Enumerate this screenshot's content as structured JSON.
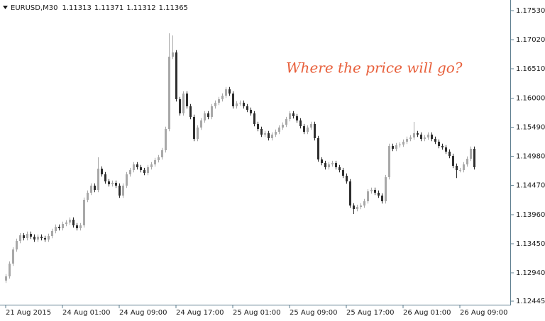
{
  "chart_data": {
    "type": "candlestick",
    "symbol": "EURUSD,M30",
    "header_values": [
      1.11313,
      1.11371,
      1.11312,
      1.11365
    ],
    "annotation": "Where the price will go?",
    "up_color": "#a8a8a8",
    "down_color": "#2e2e2e",
    "categories": [
      "21 Aug 2015",
      null,
      null,
      null,
      null,
      null,
      null,
      null,
      null,
      null,
      null,
      null,
      null,
      null,
      null,
      null,
      "24 Aug 01:00",
      null,
      null,
      null,
      null,
      null,
      null,
      null,
      null,
      null,
      null,
      null,
      null,
      null,
      null,
      null,
      "24 Aug 09:00",
      null,
      null,
      null,
      null,
      null,
      null,
      null,
      null,
      null,
      null,
      null,
      null,
      null,
      null,
      null,
      "24 Aug 17:00",
      null,
      null,
      null,
      null,
      null,
      null,
      null,
      null,
      null,
      null,
      null,
      null,
      null,
      null,
      null,
      "25 Aug 01:00",
      null,
      null,
      null,
      null,
      null,
      null,
      null,
      null,
      null,
      null,
      null,
      null,
      null,
      null,
      null,
      "25 Aug 09:00",
      null,
      null,
      null,
      null,
      null,
      null,
      null,
      null,
      null,
      null,
      null,
      null,
      null,
      null,
      null,
      "25 Aug 17:00",
      null,
      null,
      null,
      null,
      null,
      null,
      null,
      null,
      null,
      null,
      null,
      null,
      null,
      null,
      null,
      "26 Aug 01:00",
      null,
      null,
      null,
      null,
      null,
      null,
      null,
      null,
      null,
      null,
      null,
      null,
      null,
      null,
      null,
      "26 Aug 09:00",
      null,
      null,
      null,
      null
    ],
    "open": [
      1.12805,
      1.12879,
      1.13102,
      1.1335,
      1.13499,
      1.13598,
      1.13549,
      1.13623,
      1.13574,
      1.13524,
      1.13574,
      1.13549,
      1.13524,
      1.13586,
      1.13673,
      1.13747,
      1.13722,
      1.13797,
      1.13822,
      1.13871,
      1.13772,
      1.13722,
      1.13772,
      1.14219,
      1.14343,
      1.14467,
      1.14392,
      1.14764,
      1.14665,
      1.14541,
      1.14491,
      1.14516,
      1.14467,
      1.14293,
      1.14467,
      1.14665,
      1.14739,
      1.14839,
      1.14789,
      1.14739,
      1.1469,
      1.14789,
      1.14839,
      1.14913,
      1.14963,
      1.15087,
      1.15459,
      1.16724,
      1.16798,
      1.1598,
      1.15732,
      1.16079,
      1.15856,
      1.1567,
      1.15285,
      1.15484,
      1.15608,
      1.15732,
      1.1567,
      1.15856,
      1.15918,
      1.1598,
      1.16042,
      1.16153,
      1.16079,
      1.15856,
      1.15905,
      1.15918,
      1.15856,
      1.15794,
      1.15732,
      1.15546,
      1.15459,
      1.1536,
      1.15384,
      1.15298,
      1.1536,
      1.15409,
      1.15484,
      1.15533,
      1.15632,
      1.15732,
      1.15682,
      1.15608,
      1.15508,
      1.15409,
      1.15484,
      1.15546,
      1.15298,
      1.14925,
      1.14863,
      1.14789,
      1.14839,
      1.14863,
      1.14789,
      1.14739,
      1.1464,
      1.14541,
      1.14119,
      1.14057,
      1.14094,
      1.14119,
      1.14194,
      1.14367,
      1.14392,
      1.14343,
      1.14293,
      1.14194,
      1.14615,
      1.15161,
      1.15112,
      1.15174,
      1.15186,
      1.15236,
      1.15285,
      1.1531,
      1.15384,
      1.1536,
      1.15285,
      1.1531,
      1.1536,
      1.15285,
      1.15236,
      1.15161,
      1.15136,
      1.15062,
      1.14987,
      1.14814,
      1.14739,
      1.14739,
      1.14839,
      1.14938,
      1.15112
    ],
    "high": [
      1.12919,
      1.13142,
      1.1339,
      1.13539,
      1.13638,
      1.13638,
      1.13663,
      1.13663,
      1.13614,
      1.13614,
      1.13614,
      1.13589,
      1.13626,
      1.13713,
      1.13787,
      1.13787,
      1.13837,
      1.13862,
      1.13911,
      1.13911,
      1.13812,
      1.13812,
      1.14259,
      1.14383,
      1.14507,
      1.14507,
      1.14963,
      1.14804,
      1.14705,
      1.14581,
      1.14556,
      1.14556,
      1.14507,
      1.14507,
      1.14705,
      1.14779,
      1.14879,
      1.14879,
      1.14829,
      1.14779,
      1.14829,
      1.14879,
      1.14953,
      1.15003,
      1.15127,
      1.15499,
      1.17133,
      1.17096,
      1.16838,
      1.1602,
      1.16119,
      1.16119,
      1.15896,
      1.1571,
      1.15524,
      1.15648,
      1.15772,
      1.15772,
      1.15896,
      1.15958,
      1.1602,
      1.16082,
      1.16193,
      1.16193,
      1.16119,
      1.15945,
      1.15958,
      1.15958,
      1.15896,
      1.15834,
      1.15772,
      1.15586,
      1.15499,
      1.15424,
      1.15424,
      1.154,
      1.15449,
      1.15524,
      1.15573,
      1.15672,
      1.15772,
      1.15772,
      1.15722,
      1.15648,
      1.15548,
      1.15524,
      1.15586,
      1.15586,
      1.15338,
      1.14965,
      1.14903,
      1.14879,
      1.14903,
      1.14903,
      1.14829,
      1.14779,
      1.1468,
      1.14581,
      1.14159,
      1.14134,
      1.14159,
      1.14234,
      1.14407,
      1.14432,
      1.14432,
      1.14383,
      1.14333,
      1.14655,
      1.15201,
      1.15201,
      1.15214,
      1.15226,
      1.15276,
      1.15325,
      1.1535,
      1.15583,
      1.15424,
      1.154,
      1.1535,
      1.154,
      1.154,
      1.15325,
      1.15276,
      1.15201,
      1.15176,
      1.15102,
      1.15027,
      1.14854,
      1.14779,
      1.14879,
      1.14978,
      1.15152,
      1.15152
    ],
    "low": [
      1.12765,
      1.12839,
      1.13062,
      1.1331,
      1.13459,
      1.13509,
      1.13509,
      1.13534,
      1.13484,
      1.13484,
      1.13509,
      1.13484,
      1.13484,
      1.13546,
      1.13633,
      1.13682,
      1.13682,
      1.13757,
      1.13782,
      1.13732,
      1.13682,
      1.13682,
      1.13732,
      1.14179,
      1.14303,
      1.14352,
      1.14352,
      1.14625,
      1.14501,
      1.14451,
      1.14451,
      1.14427,
      1.14253,
      1.14253,
      1.14427,
      1.14625,
      1.14699,
      1.14749,
      1.14699,
      1.1465,
      1.1465,
      1.14749,
      1.14799,
      1.14873,
      1.14923,
      1.15047,
      1.15419,
      1.16684,
      1.1594,
      1.15692,
      1.15692,
      1.15816,
      1.1563,
      1.15245,
      1.15245,
      1.15444,
      1.15568,
      1.1563,
      1.1563,
      1.15816,
      1.15878,
      1.1594,
      1.16002,
      1.16039,
      1.15816,
      1.15816,
      1.15865,
      1.15816,
      1.15754,
      1.15692,
      1.15506,
      1.15419,
      1.1532,
      1.1532,
      1.15258,
      1.15258,
      1.1532,
      1.15369,
      1.15444,
      1.15493,
      1.15592,
      1.15642,
      1.15568,
      1.15468,
      1.15369,
      1.15369,
      1.15444,
      1.15258,
      1.14885,
      1.14823,
      1.14749,
      1.14749,
      1.14799,
      1.14749,
      1.14699,
      1.146,
      1.14501,
      1.14079,
      1.1397,
      1.14017,
      1.14054,
      1.14079,
      1.14154,
      1.14327,
      1.14303,
      1.14253,
      1.14154,
      1.14154,
      1.14575,
      1.15072,
      1.15072,
      1.15134,
      1.15146,
      1.15196,
      1.15245,
      1.1527,
      1.1532,
      1.15245,
      1.15245,
      1.1527,
      1.15245,
      1.15196,
      1.15121,
      1.15096,
      1.15022,
      1.14947,
      1.14774,
      1.146,
      1.14699,
      1.14699,
      1.14799,
      1.14898,
      1.14749
    ],
    "close": [
      1.12879,
      1.13102,
      1.1335,
      1.13499,
      1.13598,
      1.13549,
      1.13623,
      1.13574,
      1.13524,
      1.13574,
      1.13549,
      1.13524,
      1.13586,
      1.13673,
      1.13747,
      1.13722,
      1.13797,
      1.13822,
      1.13871,
      1.13772,
      1.13722,
      1.13772,
      1.14219,
      1.14343,
      1.14467,
      1.14392,
      1.14764,
      1.14665,
      1.14541,
      1.14491,
      1.14516,
      1.14467,
      1.14293,
      1.14467,
      1.14665,
      1.14739,
      1.14839,
      1.14789,
      1.14739,
      1.1469,
      1.14789,
      1.14839,
      1.14913,
      1.14963,
      1.15087,
      1.15459,
      1.16724,
      1.16798,
      1.1598,
      1.15732,
      1.16079,
      1.15856,
      1.1567,
      1.15285,
      1.15484,
      1.15608,
      1.15732,
      1.1567,
      1.15856,
      1.15918,
      1.1598,
      1.16042,
      1.16153,
      1.16079,
      1.15856,
      1.15905,
      1.15918,
      1.15856,
      1.15794,
      1.15732,
      1.15546,
      1.15459,
      1.1536,
      1.15384,
      1.15298,
      1.1536,
      1.15409,
      1.15484,
      1.15533,
      1.15632,
      1.15732,
      1.15682,
      1.15608,
      1.15508,
      1.15409,
      1.15484,
      1.15546,
      1.15298,
      1.14925,
      1.14863,
      1.14789,
      1.14839,
      1.14863,
      1.14789,
      1.14739,
      1.1464,
      1.14541,
      1.14119,
      1.14057,
      1.14094,
      1.14119,
      1.14194,
      1.14367,
      1.14392,
      1.14343,
      1.14293,
      1.14194,
      1.14615,
      1.15161,
      1.15112,
      1.15174,
      1.15186,
      1.15236,
      1.15285,
      1.1531,
      1.15384,
      1.1536,
      1.15285,
      1.1531,
      1.1536,
      1.15285,
      1.15236,
      1.15161,
      1.15136,
      1.15062,
      1.14987,
      1.14814,
      1.14739,
      1.14739,
      1.14839,
      1.14938,
      1.15112,
      1.14789
    ],
    "ylim": [
      1.12408,
      1.17654
    ],
    "yticks": [
      1.12445,
      {
        "value": 1.1294,
        "label": "1.12940"
      },
      {
        "value": 1.1345,
        "label": "1.13450"
      },
      {
        "value": 1.1396,
        "label": "1.13960"
      },
      {
        "value": 1.1447,
        "label": "1.14470"
      },
      {
        "value": 1.1498,
        "label": "1.14980"
      },
      {
        "value": 1.1549,
        "label": "1.15490"
      },
      {
        "value": 1.16,
        "label": "1.16000"
      },
      {
        "value": 1.1651,
        "label": "1.16510"
      },
      {
        "value": 1.1702,
        "label": "1.17020"
      },
      {
        "value": 1.1753,
        "label": "1.17530"
      }
    ]
  }
}
